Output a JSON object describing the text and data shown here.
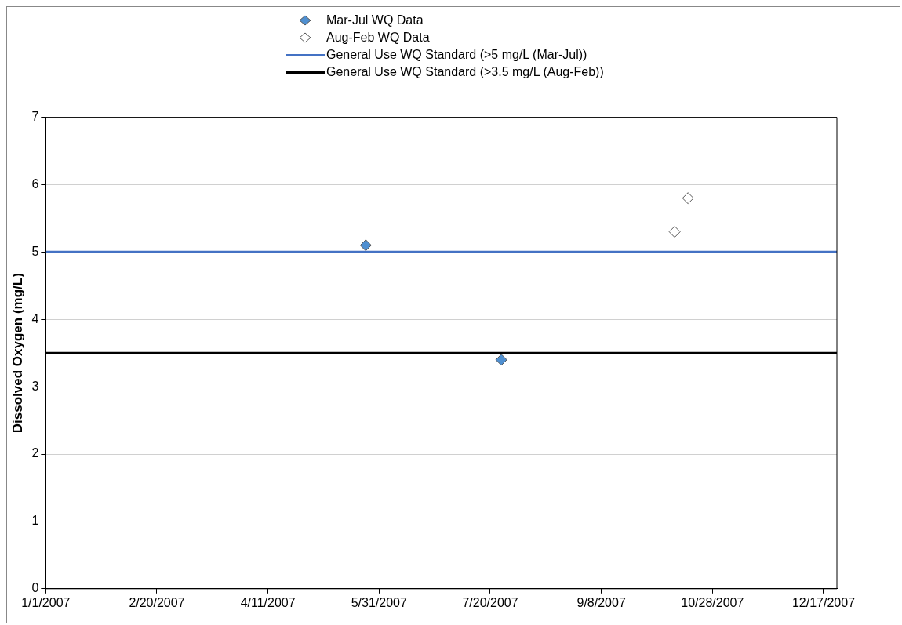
{
  "chart_data": {
    "type": "scatter",
    "ylabel": "Dissolved Oxygen (mg/L)",
    "grid": "y",
    "legend": "top",
    "xlim": [
      "2007-01-01",
      "2007-12-23"
    ],
    "xticks": [
      {
        "value": "2007-01-01",
        "label": "1/1/2007"
      },
      {
        "value": "2007-02-20",
        "label": "2/20/2007"
      },
      {
        "value": "2007-04-11",
        "label": "4/11/2007"
      },
      {
        "value": "2007-05-31",
        "label": "5/31/2007"
      },
      {
        "value": "2007-07-20",
        "label": "7/20/2007"
      },
      {
        "value": "2007-09-08",
        "label": "9/8/2007"
      },
      {
        "value": "2007-10-28",
        "label": "10/28/2007"
      },
      {
        "value": "2007-12-17",
        "label": "12/17/2007"
      }
    ],
    "ylim": [
      0,
      7
    ],
    "yticks": [
      0,
      1,
      2,
      3,
      4,
      5,
      6,
      7
    ],
    "series": [
      {
        "name": "Mar-Jul WQ Data",
        "marker": "diamond",
        "color": "#4f8fd0",
        "x": [
          "2007-05-25",
          "2007-07-25"
        ],
        "values": [
          5.1,
          3.4
        ]
      },
      {
        "name": "Aug-Feb WQ Data",
        "marker": "diamond",
        "color": "#ffffff",
        "x": [
          "2007-10-11",
          "2007-10-17"
        ],
        "values": [
          5.3,
          5.8
        ]
      },
      {
        "name": "General Use WQ Standard (>5 mg/L (Mar-Jul))",
        "type": "line",
        "marker": "none",
        "line_style": "solid",
        "color": "#4472c4",
        "x": [
          "2007-01-01",
          "2007-12-23"
        ],
        "values": [
          5,
          5
        ]
      },
      {
        "name": "General Use WQ Standard (>3.5 mg/L (Aug-Feb))",
        "type": "line",
        "marker": "none",
        "line_style": "solid",
        "color": "#000000",
        "x": [
          "2007-01-01",
          "2007-12-23"
        ],
        "values": [
          3.5,
          3.5
        ]
      }
    ]
  }
}
